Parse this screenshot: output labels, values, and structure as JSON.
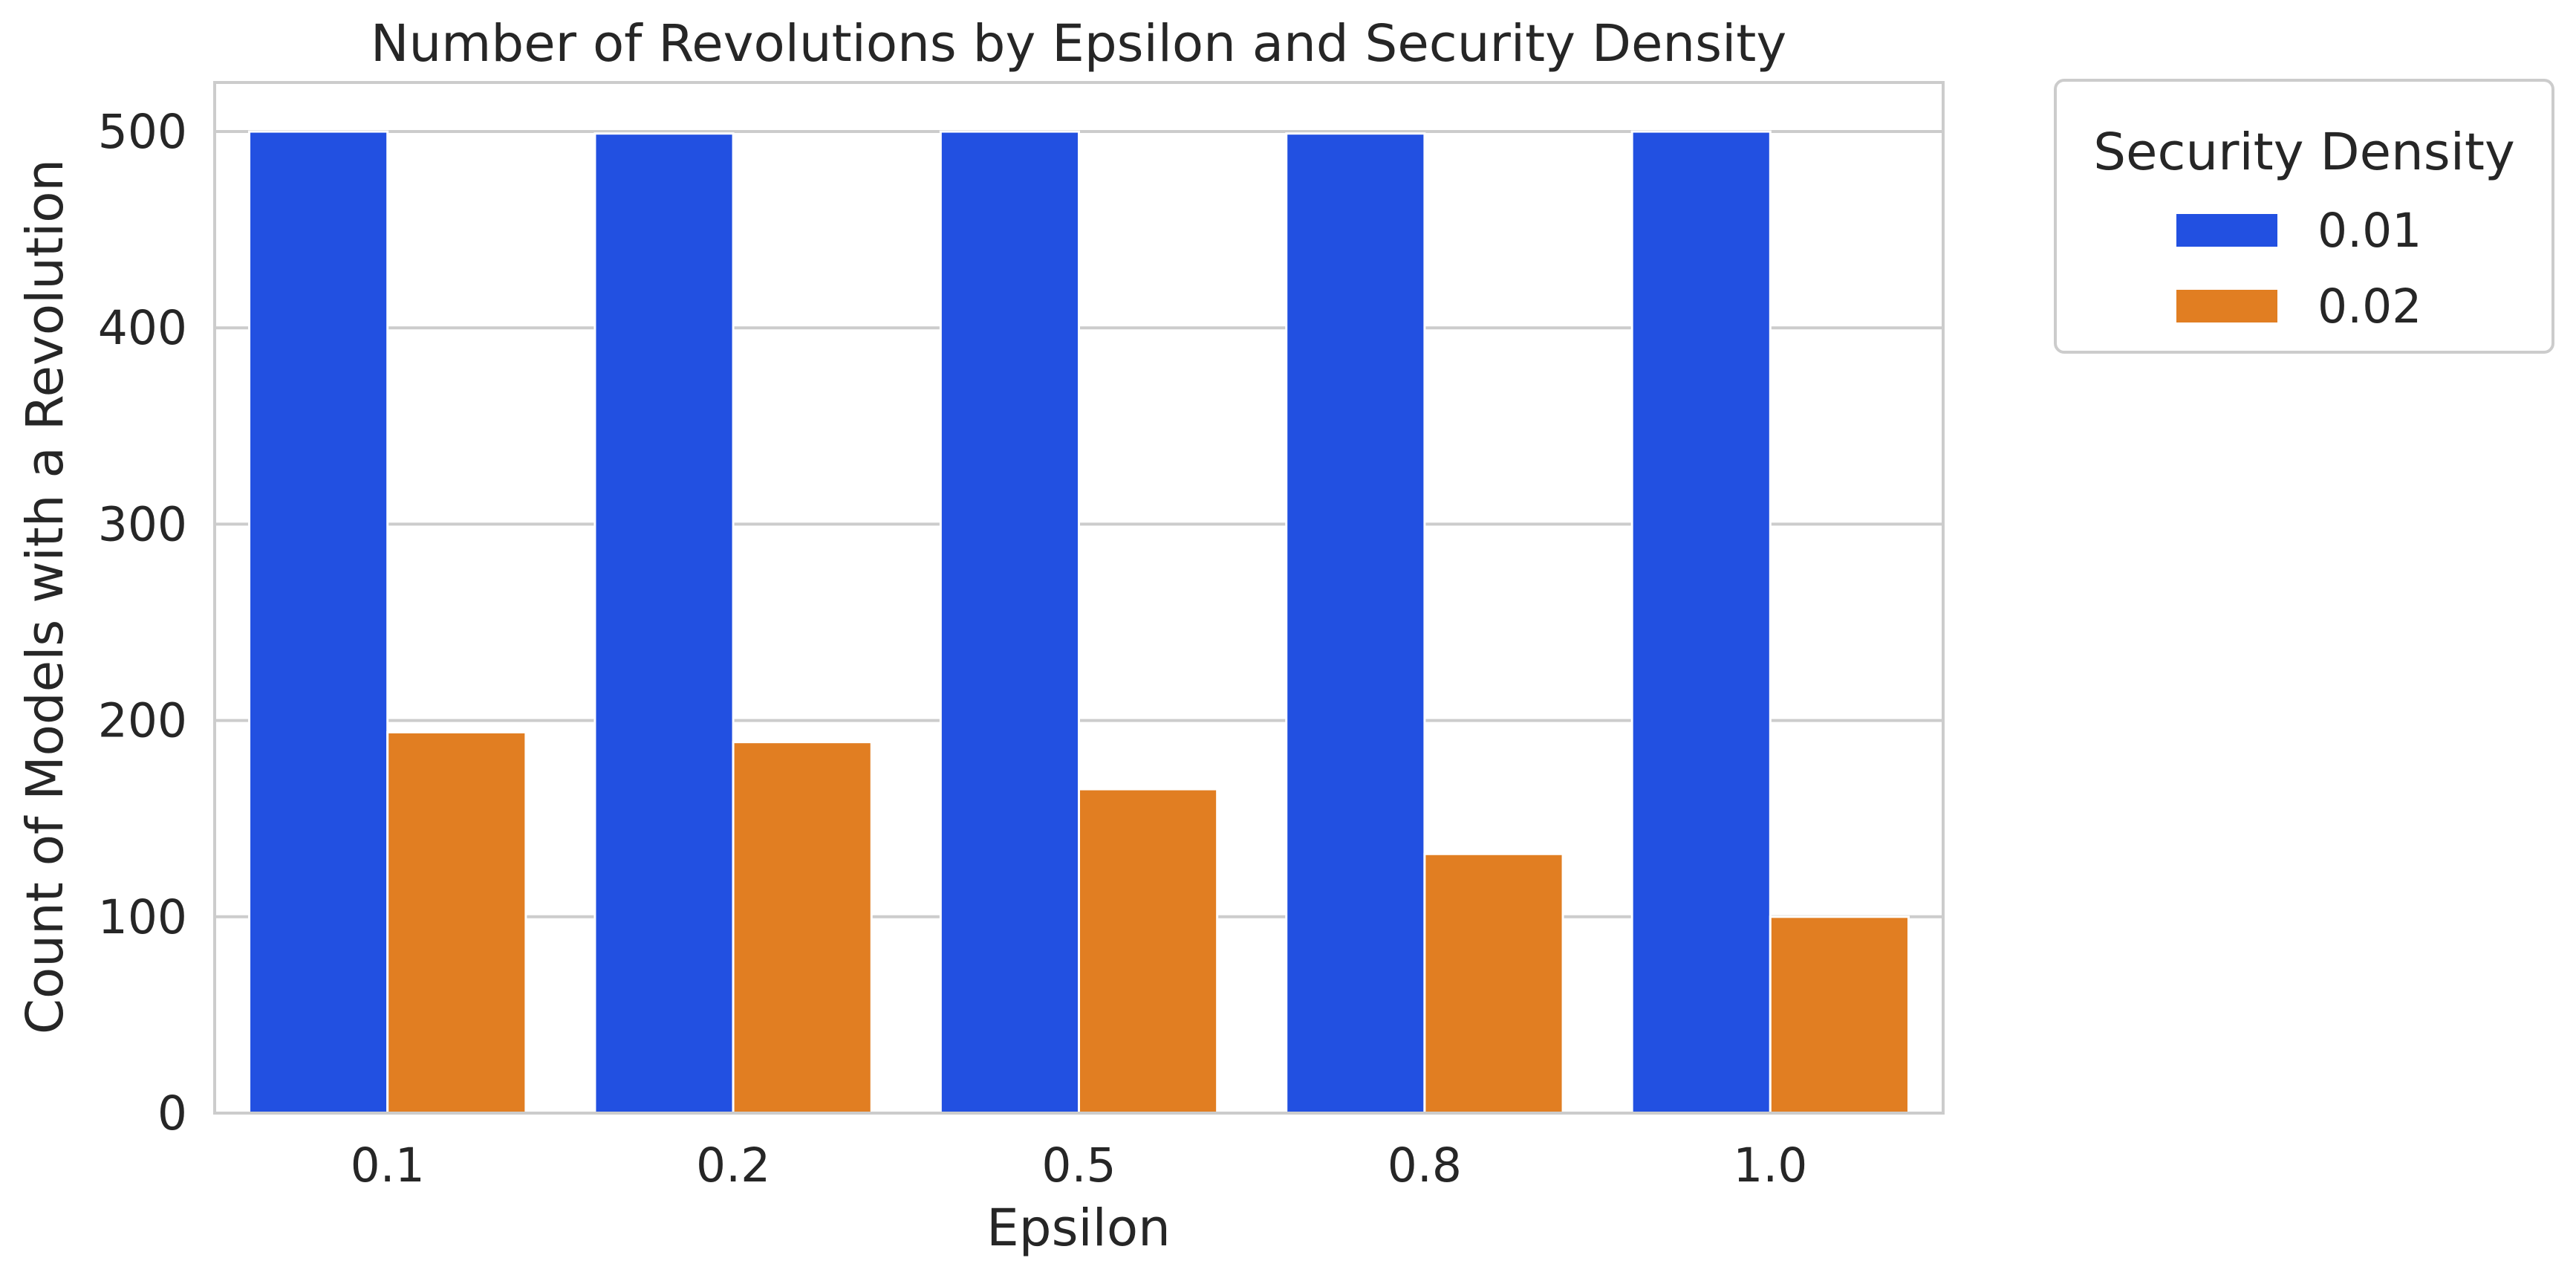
{
  "chart_data": {
    "type": "bar",
    "title": "Number of Revolutions by Epsilon and Security Density",
    "xlabel": "Epsilon",
    "ylabel": "Count of Models with a Revolution",
    "categories": [
      "0.1",
      "0.2",
      "0.5",
      "0.8",
      "1.0"
    ],
    "series": [
      {
        "name": "0.01",
        "values": [
          500,
          499,
          500,
          499,
          500
        ],
        "color": "#2250e1"
      },
      {
        "name": "0.02",
        "values": [
          194,
          189,
          165,
          132,
          100
        ],
        "color": "#e17e22"
      }
    ],
    "ylim": [
      0,
      525
    ],
    "yticks": [
      "0",
      "100",
      "200",
      "300",
      "400",
      "500"
    ],
    "grid": true,
    "legend": {
      "title": "Security Density",
      "placement": "outside-top-right"
    }
  }
}
